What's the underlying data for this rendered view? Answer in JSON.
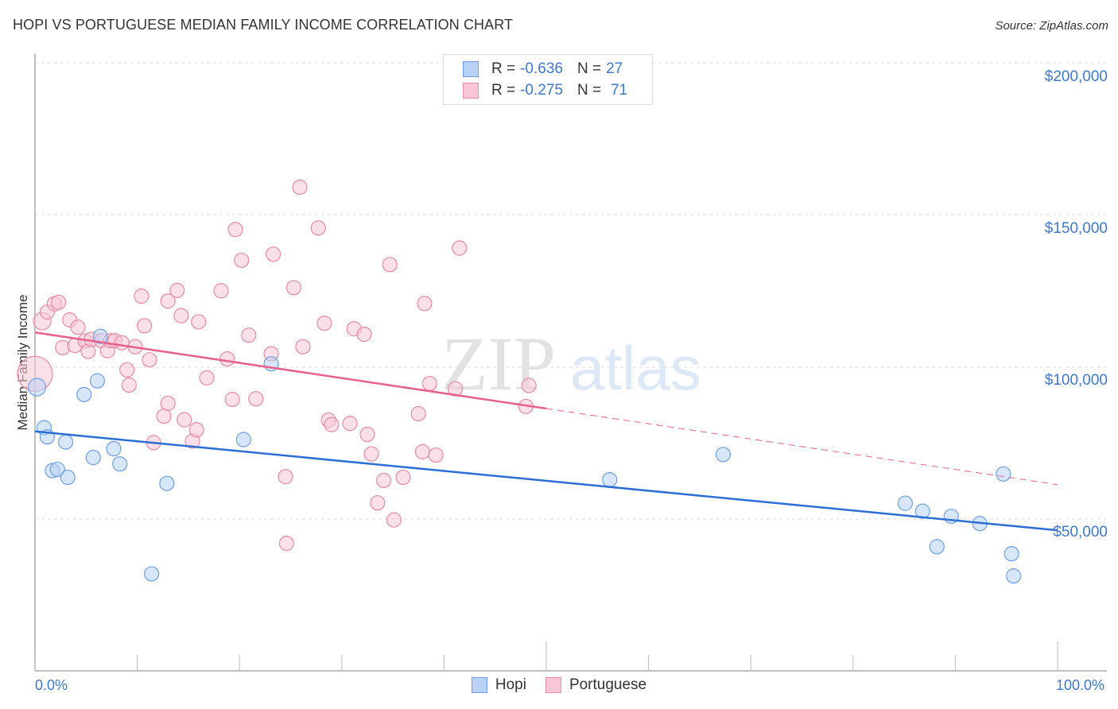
{
  "header": {
    "title": "HOPI VS PORTUGUESE MEDIAN FAMILY INCOME CORRELATION CHART",
    "source": "Source: ZipAtlas.com"
  },
  "legend": {
    "series": [
      {
        "name": "Hopi",
        "r_label": "R =",
        "r_value": "-0.636",
        "n_label": "N =",
        "n_value": "27",
        "color": "#6d9fe6",
        "fill": "#b8d2f5"
      },
      {
        "name": "Portuguese",
        "r_label": "R =",
        "r_value": "-0.275",
        "n_label": "N =",
        "n_value": "71",
        "color": "#e88aa6",
        "fill": "#f9c6d5"
      }
    ]
  },
  "axes": {
    "ylabel": "Median Family Income",
    "yticks": [
      "$200,000",
      "$150,000",
      "$100,000",
      "$50,000"
    ],
    "xticks": [
      "0.0%",
      "100.0%"
    ]
  },
  "watermark": {
    "zip": "ZIP",
    "atlas": "atlas"
  },
  "colors": {
    "hopi_line": "#2b6fd6",
    "portuguese_line": "#e8608c",
    "tick_text": "#3e78cf",
    "grid": "#dddddd"
  },
  "chart_data": {
    "type": "scatter",
    "title": "HOPI VS PORTUGUESE MEDIAN FAMILY INCOME CORRELATION CHART",
    "xlabel": "",
    "ylabel": "Median Family Income",
    "xlim": [
      0,
      100
    ],
    "ylim": [
      0,
      207500
    ],
    "x_tick_labels": [
      "0.0%",
      "100.0%"
    ],
    "y_tick_values": [
      50000,
      100000,
      150000,
      200000
    ],
    "grid": true,
    "legend_position": "top-center",
    "series": [
      {
        "name": "Hopi",
        "r": -0.636,
        "n": 27,
        "trend": {
          "x": [
            0,
            100
          ],
          "y": [
            78800,
            46300
          ]
        },
        "points": [
          [
            0.2,
            93300
          ],
          [
            0.9,
            80000
          ],
          [
            1.2,
            77000
          ],
          [
            1.7,
            65900
          ],
          [
            2.2,
            66300
          ],
          [
            3.0,
            75300
          ],
          [
            3.2,
            63700
          ],
          [
            4.8,
            90900
          ],
          [
            5.7,
            70200
          ],
          [
            6.4,
            110000
          ],
          [
            6.1,
            95400
          ],
          [
            7.7,
            73100
          ],
          [
            8.3,
            68100
          ],
          [
            11.4,
            32000
          ],
          [
            12.9,
            61700
          ],
          [
            20.4,
            76100
          ],
          [
            23.1,
            101000
          ],
          [
            56.2,
            62900
          ],
          [
            67.3,
            71200
          ],
          [
            85.1,
            55200
          ],
          [
            86.8,
            52600
          ],
          [
            88.2,
            40900
          ],
          [
            89.6,
            50900
          ],
          [
            92.4,
            48500
          ],
          [
            94.7,
            64800
          ],
          [
            95.5,
            38600
          ],
          [
            95.7,
            31300
          ]
        ]
      },
      {
        "name": "Portuguese",
        "r": -0.275,
        "n": 71,
        "trend": {
          "x": [
            0,
            50
          ],
          "y": [
            111300,
            86300
          ],
          "dashed_extension": {
            "x": [
              50,
              100
            ],
            "y": [
              86300,
              61300
            ]
          }
        },
        "points": [
          [
            0.0,
            97700
          ],
          [
            0.7,
            115000
          ],
          [
            1.2,
            118000
          ],
          [
            1.9,
            120700
          ],
          [
            2.3,
            121200
          ],
          [
            2.7,
            106300
          ],
          [
            3.4,
            115400
          ],
          [
            3.9,
            107000
          ],
          [
            4.2,
            113000
          ],
          [
            4.9,
            108500
          ],
          [
            5.2,
            105100
          ],
          [
            5.5,
            109000
          ],
          [
            6.5,
            108600
          ],
          [
            7.1,
            105300
          ],
          [
            7.4,
            108600
          ],
          [
            7.8,
            108600
          ],
          [
            8.5,
            107900
          ],
          [
            9.0,
            99000
          ],
          [
            9.2,
            94000
          ],
          [
            9.8,
            106600
          ],
          [
            10.4,
            123200
          ],
          [
            10.7,
            113500
          ],
          [
            11.2,
            102300
          ],
          [
            11.6,
            75100
          ],
          [
            12.6,
            83800
          ],
          [
            13.0,
            88000
          ],
          [
            13.0,
            121600
          ],
          [
            13.9,
            125100
          ],
          [
            14.3,
            116800
          ],
          [
            14.6,
            82600
          ],
          [
            15.4,
            75600
          ],
          [
            15.8,
            79300
          ],
          [
            16.0,
            114800
          ],
          [
            16.8,
            96400
          ],
          [
            18.2,
            125000
          ],
          [
            18.8,
            102600
          ],
          [
            19.6,
            145100
          ],
          [
            19.3,
            89300
          ],
          [
            20.2,
            135000
          ],
          [
            20.9,
            110400
          ],
          [
            21.6,
            89500
          ],
          [
            23.3,
            137000
          ],
          [
            23.1,
            104300
          ],
          [
            24.5,
            63900
          ],
          [
            24.6,
            42000
          ],
          [
            25.3,
            126000
          ],
          [
            25.9,
            159000
          ],
          [
            26.2,
            106600
          ],
          [
            27.7,
            145600
          ],
          [
            28.3,
            114300
          ],
          [
            28.7,
            82500
          ],
          [
            29.0,
            81000
          ],
          [
            30.8,
            81400
          ],
          [
            31.2,
            112500
          ],
          [
            32.2,
            110700
          ],
          [
            32.5,
            77800
          ],
          [
            32.9,
            71400
          ],
          [
            33.5,
            55300
          ],
          [
            34.1,
            62700
          ],
          [
            34.7,
            133600
          ],
          [
            35.1,
            49700
          ],
          [
            36.0,
            63700
          ],
          [
            37.5,
            84600
          ],
          [
            37.9,
            72100
          ],
          [
            38.1,
            120800
          ],
          [
            38.6,
            94500
          ],
          [
            39.2,
            71000
          ],
          [
            41.1,
            92800
          ],
          [
            41.5,
            139000
          ],
          [
            48.3,
            93900
          ],
          [
            48.0,
            87000
          ]
        ]
      }
    ]
  }
}
